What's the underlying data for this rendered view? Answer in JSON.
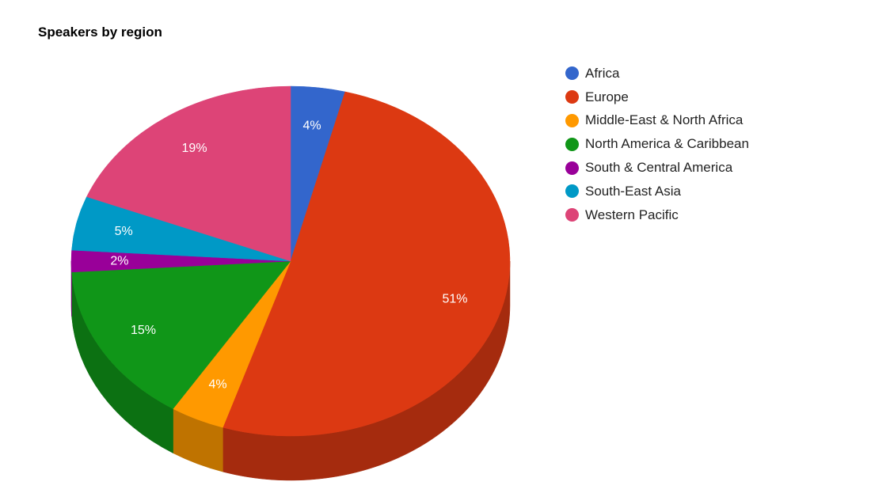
{
  "chart_data": {
    "type": "pie",
    "title": "Speakers by region",
    "three_d": true,
    "legend_position": "right",
    "start_angle_deg": 0,
    "direction": "clockwise",
    "slices": [
      {
        "name": "Africa",
        "value": 4,
        "label": "4%",
        "color": "#3366cc",
        "side_color": "#264d99"
      },
      {
        "name": "Europe",
        "value": 51,
        "label": "51%",
        "color": "#dc3912",
        "side_color": "#a52b0e"
      },
      {
        "name": "Middle-East & North Africa",
        "value": 4,
        "label": "4%",
        "color": "#ff9900",
        "side_color": "#bf7300"
      },
      {
        "name": "North America & Caribbean",
        "value": 15,
        "label": "15%",
        "color": "#109618",
        "side_color": "#0c7112"
      },
      {
        "name": "South & Central America",
        "value": 2,
        "label": "2%",
        "color": "#990099",
        "side_color": "#730073"
      },
      {
        "name": "South-East Asia",
        "value": 5,
        "label": "5%",
        "color": "#0099c6",
        "side_color": "#007394"
      },
      {
        "name": "Western Pacific",
        "value": 19,
        "label": "19%",
        "color": "#dd4477",
        "side_color": "#a63359"
      }
    ]
  }
}
